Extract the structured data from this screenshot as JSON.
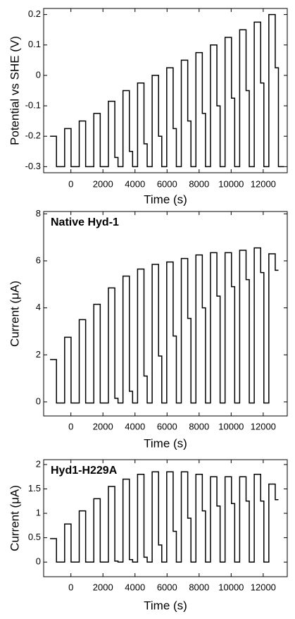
{
  "chart_data": [
    {
      "type": "line",
      "drawstyle": "steps-post",
      "ylabel": "Potential vs SHE (V)",
      "xlabel": "Time (s)",
      "color": "#000000",
      "xlim": [
        -1700,
        13500
      ],
      "xticks": [
        0,
        2000,
        4000,
        6000,
        8000,
        10000,
        12000
      ],
      "ylim": [
        -0.32,
        0.22
      ],
      "yticks": [
        -0.3,
        -0.2,
        -0.1,
        0,
        0.1,
        0.2
      ],
      "x": [
        -1300,
        -900,
        -390,
        10,
        520,
        920,
        1430,
        1830,
        2340,
        2740,
        2940,
        3250,
        3650,
        3850,
        4160,
        4560,
        4760,
        5070,
        5470,
        5670,
        5980,
        6380,
        6580,
        6890,
        7290,
        7490,
        7800,
        8200,
        8400,
        8710,
        9110,
        9310,
        9620,
        10020,
        10220,
        10530,
        10930,
        11130,
        11440,
        11840,
        12040,
        12350,
        12750,
        12950,
        13300
      ],
      "values": [
        -0.2,
        -0.3,
        -0.175,
        -0.3,
        -0.15,
        -0.3,
        -0.125,
        -0.3,
        -0.085,
        -0.27,
        -0.3,
        -0.05,
        -0.25,
        -0.3,
        -0.025,
        -0.225,
        -0.3,
        0,
        -0.2,
        -0.3,
        0.025,
        -0.175,
        -0.3,
        0.05,
        -0.15,
        -0.3,
        0.075,
        -0.125,
        -0.3,
        0.1,
        -0.1,
        -0.3,
        0.125,
        -0.075,
        -0.3,
        0.15,
        -0.05,
        -0.3,
        0.175,
        -0.025,
        -0.3,
        0.2,
        0.025,
        -0.3,
        -0.3
      ]
    },
    {
      "type": "line",
      "drawstyle": "steps-post",
      "annotation": "Native Hyd-1",
      "ylabel": "Current (μA)",
      "xlabel": "Time (s)",
      "color": "#000000",
      "xlim": [
        -1700,
        13500
      ],
      "xticks": [
        0,
        2000,
        4000,
        6000,
        8000,
        10000,
        12000
      ],
      "ylim": [
        -0.6,
        8.1
      ],
      "yticks": [
        0,
        2,
        4,
        6,
        8
      ],
      "x": [
        -1300,
        -900,
        -390,
        10,
        520,
        920,
        1430,
        1830,
        2340,
        2740,
        2940,
        3250,
        3650,
        3850,
        4160,
        4560,
        4760,
        5070,
        5470,
        5670,
        5980,
        6380,
        6580,
        6890,
        7290,
        7490,
        7800,
        8200,
        8400,
        8710,
        9110,
        9310,
        9620,
        10020,
        10220,
        10530,
        10930,
        11130,
        11440,
        11840,
        12040,
        12350,
        12750,
        12950
      ],
      "values": [
        1.8,
        -0.05,
        2.75,
        -0.05,
        3.5,
        -0.05,
        4.15,
        -0.05,
        4.85,
        0.15,
        -0.05,
        5.35,
        0.45,
        -0.05,
        5.65,
        1.1,
        -0.05,
        5.85,
        1.95,
        -0.05,
        5.95,
        2.8,
        -0.05,
        6.1,
        3.55,
        -0.05,
        6.25,
        4.0,
        -0.05,
        6.35,
        4.5,
        -0.05,
        6.35,
        4.9,
        -0.05,
        6.45,
        5.2,
        -0.05,
        6.55,
        5.5,
        -0.05,
        6.3,
        5.6,
        5.6
      ]
    },
    {
      "type": "line",
      "drawstyle": "steps-post",
      "annotation": "Hyd1-H229A",
      "ylabel": "Current (μA)",
      "xlabel": "Time (s)",
      "color": "#000000",
      "xlim": [
        -1700,
        13500
      ],
      "xticks": [
        0,
        2000,
        4000,
        6000,
        8000,
        10000,
        12000
      ],
      "ylim": [
        -0.3,
        2.1
      ],
      "yticks": [
        0,
        0.5,
        1,
        1.5,
        2
      ],
      "x": [
        -1300,
        -900,
        -390,
        10,
        520,
        920,
        1430,
        1830,
        2340,
        2740,
        2940,
        3250,
        3650,
        3850,
        4160,
        4560,
        4760,
        5070,
        5470,
        5670,
        5980,
        6380,
        6580,
        6890,
        7290,
        7490,
        7800,
        8200,
        8400,
        8710,
        9110,
        9310,
        9620,
        10020,
        10220,
        10530,
        10930,
        11130,
        11440,
        11840,
        12040,
        12350,
        12750,
        12950
      ],
      "values": [
        0.48,
        0,
        0.78,
        0,
        1.05,
        0,
        1.3,
        0,
        1.55,
        0.02,
        0,
        1.7,
        0.05,
        0,
        1.8,
        0.1,
        0,
        1.85,
        0.35,
        0,
        1.85,
        0.63,
        0,
        1.85,
        0.9,
        0,
        1.8,
        1.05,
        0,
        1.75,
        1.15,
        0,
        1.75,
        1.2,
        0,
        1.75,
        1.25,
        0,
        1.8,
        1.25,
        0,
        1.6,
        1.28,
        1.28
      ]
    }
  ]
}
